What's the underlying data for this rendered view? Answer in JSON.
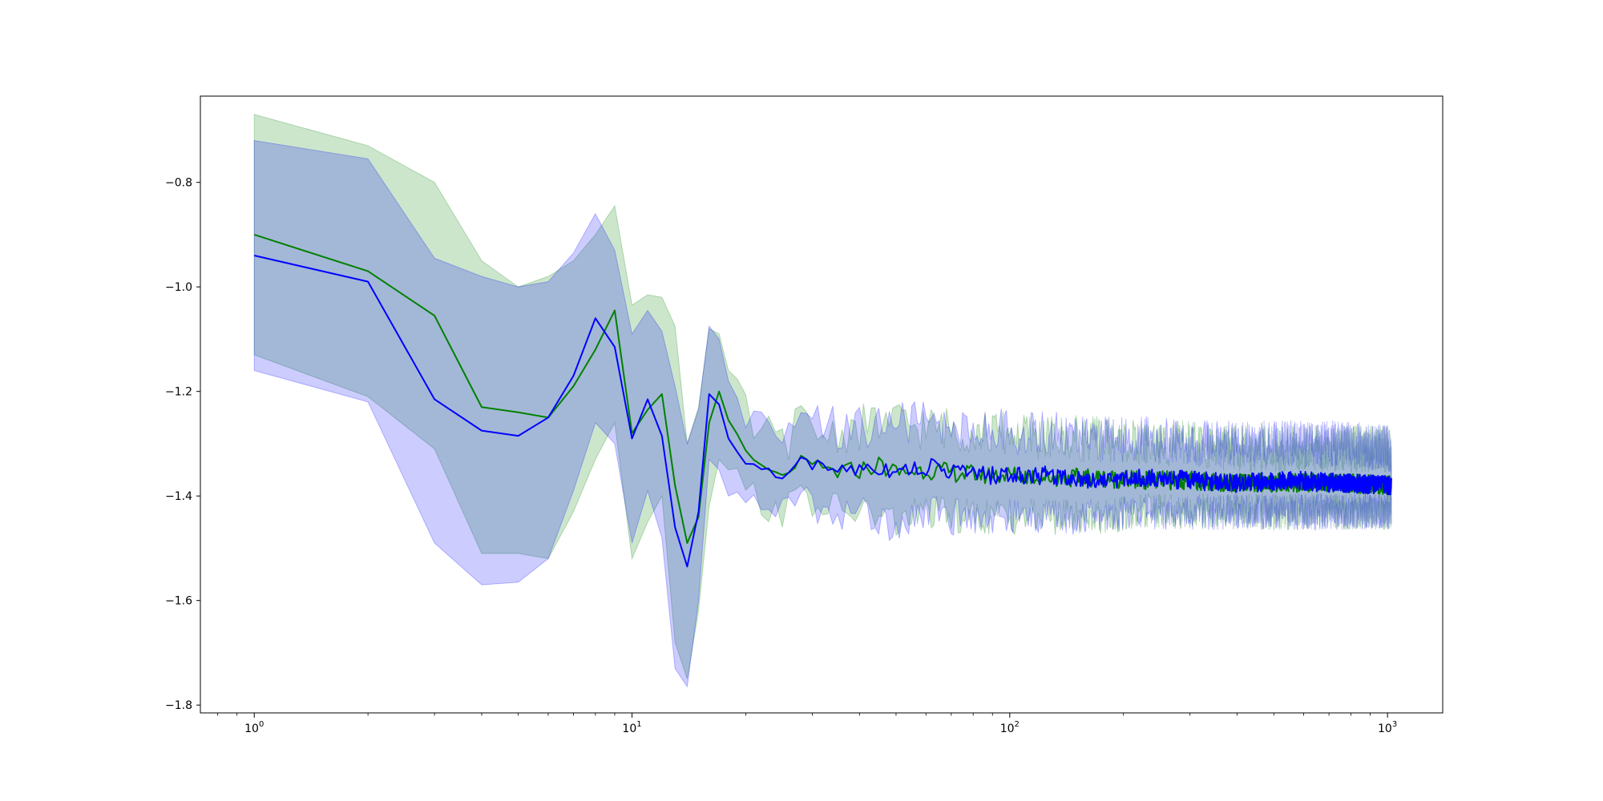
{
  "chart_data": {
    "type": "line",
    "title": "",
    "xlabel": "",
    "ylabel": "",
    "xscale": "log",
    "xlim": [
      0.72,
      1400
    ],
    "ylim": [
      -1.815,
      -0.635
    ],
    "grid": false,
    "legend": "none",
    "x_major_ticks": [
      1,
      10,
      100,
      1000
    ],
    "x_tick_labels": [
      {
        "base": "10",
        "exp": "0"
      },
      {
        "base": "10",
        "exp": "1"
      },
      {
        "base": "10",
        "exp": "2"
      },
      {
        "base": "10",
        "exp": "3"
      }
    ],
    "y_ticks": [
      -0.8,
      -1.0,
      -1.2,
      -1.4,
      -1.6,
      -1.8
    ],
    "y_tick_labels": [
      "−0.8",
      "−1.0",
      "−1.2",
      "−1.4",
      "−1.6",
      "−1.8"
    ],
    "series": [
      {
        "color": "#008000",
        "band_color": "#008000",
        "band_opacity": 0.2,
        "points": [
          [
            1,
            -0.9,
            -0.67,
            -1.13
          ],
          [
            2,
            -0.97,
            -0.73,
            -1.21
          ],
          [
            3,
            -1.055,
            -0.8,
            -1.31
          ],
          [
            4,
            -1.23,
            -0.95,
            -1.51
          ],
          [
            5,
            -1.24,
            -1.0,
            -1.51
          ],
          [
            6,
            -1.25,
            -0.98,
            -1.52
          ],
          [
            7,
            -1.19,
            -0.95,
            -1.43
          ],
          [
            8,
            -1.12,
            -0.9,
            -1.33
          ],
          [
            9,
            -1.045,
            -0.845,
            -1.26
          ],
          [
            10,
            -1.28,
            -1.035,
            -1.52
          ],
          [
            11,
            -1.235,
            -1.015,
            -1.45
          ],
          [
            12,
            -1.205,
            -1.02,
            -1.4
          ],
          [
            13,
            -1.38,
            -1.075,
            -1.68
          ],
          [
            14,
            -1.49,
            -1.3,
            -1.75
          ],
          [
            15,
            -1.44,
            -1.23,
            -1.62
          ],
          [
            16,
            -1.26,
            -1.08,
            -1.42
          ],
          [
            17,
            -1.2,
            -1.09,
            -1.33
          ],
          [
            18,
            -1.255,
            -1.16,
            -1.35
          ],
          [
            20,
            -1.32,
            -1.25,
            -1.39
          ],
          [
            22,
            -1.345,
            -1.28,
            -1.41
          ],
          [
            25,
            -1.365,
            -1.3,
            -1.43
          ],
          [
            28,
            -1.33,
            -1.26,
            -1.4
          ],
          [
            30,
            -1.345,
            -1.28,
            -1.41
          ],
          [
            35,
            -1.355,
            -1.28,
            -1.43
          ],
          [
            40,
            -1.35,
            -1.27,
            -1.43
          ],
          [
            45,
            -1.34,
            -1.26,
            -1.44
          ],
          [
            50,
            -1.355,
            -1.26,
            -1.45
          ],
          [
            60,
            -1.35,
            -1.27,
            -1.43
          ],
          [
            70,
            -1.355,
            -1.27,
            -1.44
          ],
          [
            85,
            -1.36,
            -1.28,
            -1.44
          ],
          [
            100,
            -1.36,
            -1.28,
            -1.44
          ],
          [
            130,
            -1.365,
            -1.29,
            -1.44
          ],
          [
            170,
            -1.365,
            -1.29,
            -1.44
          ],
          [
            220,
            -1.37,
            -1.3,
            -1.43
          ],
          [
            300,
            -1.37,
            -1.3,
            -1.43
          ],
          [
            400,
            -1.375,
            -1.31,
            -1.43
          ],
          [
            550,
            -1.375,
            -1.31,
            -1.43
          ],
          [
            750,
            -1.375,
            -1.31,
            -1.43
          ],
          [
            1024,
            -1.38,
            -1.31,
            -1.43
          ]
        ]
      },
      {
        "color": "#0000ff",
        "band_color": "#0000ff",
        "band_opacity": 0.2,
        "points": [
          [
            1,
            -0.94,
            -0.72,
            -1.16
          ],
          [
            2,
            -0.99,
            -0.755,
            -1.22
          ],
          [
            3,
            -1.215,
            -0.945,
            -1.49
          ],
          [
            4,
            -1.275,
            -0.98,
            -1.57
          ],
          [
            5,
            -1.285,
            -1.0,
            -1.565
          ],
          [
            6,
            -1.25,
            -0.99,
            -1.52
          ],
          [
            7,
            -1.17,
            -0.935,
            -1.39
          ],
          [
            8,
            -1.06,
            -0.86,
            -1.26
          ],
          [
            9,
            -1.115,
            -0.93,
            -1.3
          ],
          [
            10,
            -1.29,
            -1.09,
            -1.49
          ],
          [
            11,
            -1.215,
            -1.045,
            -1.39
          ],
          [
            12,
            -1.285,
            -1.085,
            -1.48
          ],
          [
            13,
            -1.46,
            -1.19,
            -1.73
          ],
          [
            14,
            -1.535,
            -1.3,
            -1.765
          ],
          [
            15,
            -1.43,
            -1.235,
            -1.6
          ],
          [
            16,
            -1.205,
            -1.075,
            -1.33
          ],
          [
            17,
            -1.225,
            -1.1,
            -1.35
          ],
          [
            18,
            -1.29,
            -1.18,
            -1.4
          ],
          [
            20,
            -1.34,
            -1.27,
            -1.4
          ],
          [
            22,
            -1.345,
            -1.28,
            -1.41
          ],
          [
            25,
            -1.365,
            -1.3,
            -1.43
          ],
          [
            28,
            -1.325,
            -1.26,
            -1.4
          ],
          [
            30,
            -1.345,
            -1.27,
            -1.42
          ],
          [
            35,
            -1.35,
            -1.27,
            -1.43
          ],
          [
            40,
            -1.345,
            -1.27,
            -1.43
          ],
          [
            45,
            -1.345,
            -1.26,
            -1.45
          ],
          [
            50,
            -1.35,
            -1.26,
            -1.45
          ],
          [
            60,
            -1.345,
            -1.26,
            -1.43
          ],
          [
            70,
            -1.35,
            -1.27,
            -1.44
          ],
          [
            85,
            -1.36,
            -1.27,
            -1.44
          ],
          [
            100,
            -1.36,
            -1.28,
            -1.44
          ],
          [
            130,
            -1.36,
            -1.28,
            -1.44
          ],
          [
            170,
            -1.37,
            -1.29,
            -1.44
          ],
          [
            220,
            -1.365,
            -1.29,
            -1.43
          ],
          [
            300,
            -1.37,
            -1.3,
            -1.43
          ],
          [
            400,
            -1.375,
            -1.3,
            -1.43
          ],
          [
            550,
            -1.37,
            -1.3,
            -1.43
          ],
          [
            750,
            -1.375,
            -1.3,
            -1.43
          ],
          [
            1024,
            -1.38,
            -1.31,
            -1.43
          ]
        ]
      }
    ]
  }
}
